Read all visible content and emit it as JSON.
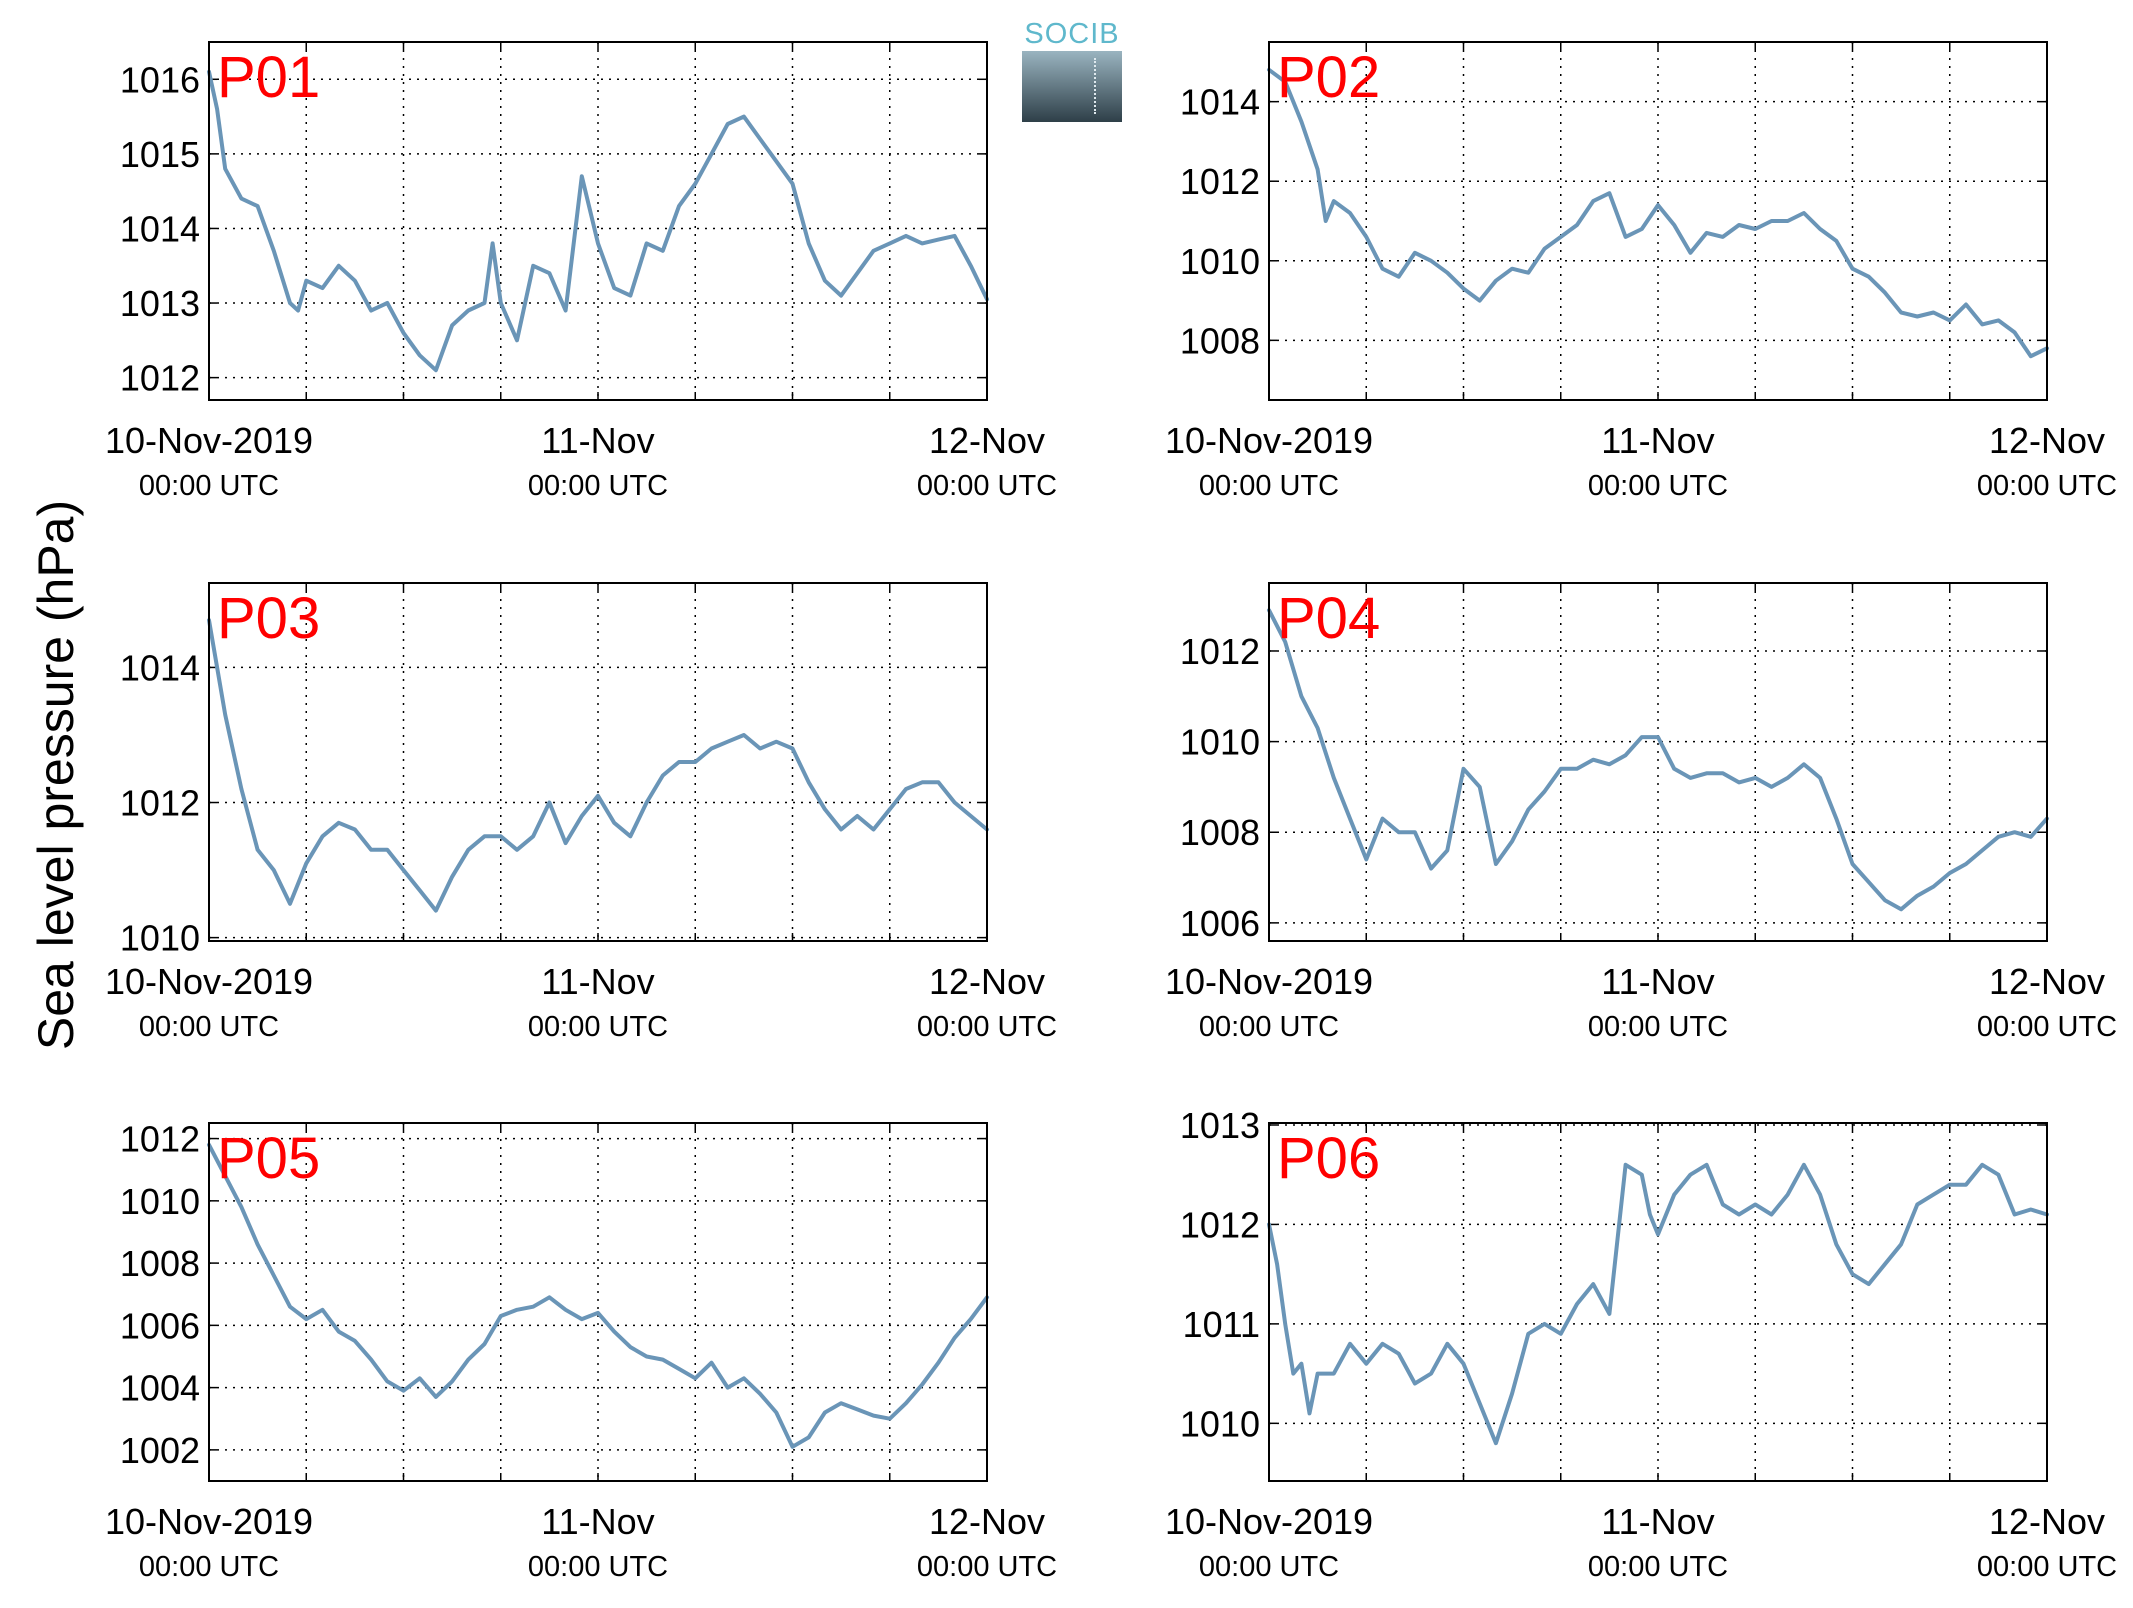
{
  "ylabel": "Sea level pressure (hPa)",
  "brand": {
    "logo_text": "SOCIB",
    "colors": {
      "text": "#5fb8cc",
      "top": "#9ab4c0",
      "bottom": "#2e3f48"
    }
  },
  "colors": {
    "line": "#6a95b7",
    "panel_label": "#ff0000",
    "axis": "#000000"
  },
  "x_tick_labels": [
    "10-Nov-2019",
    "11-Nov",
    "12-Nov"
  ],
  "x_tick_sublabels": [
    "00:00 UTC",
    "00:00 UTC",
    "00:00 UTC"
  ],
  "chart_data": [
    {
      "type": "line",
      "title": "P01",
      "xlabel": "",
      "ylabel": "Sea level pressure (hPa)",
      "x_unit": "hours since 10-Nov-2019 00:00 UTC",
      "xlim": [
        0,
        48
      ],
      "ylim": [
        1011.7,
        1016.5
      ],
      "yticks": [
        1012,
        1013,
        1014,
        1015,
        1016
      ],
      "grid": true,
      "x": [
        0,
        0.5,
        1,
        1.5,
        2,
        3,
        4,
        5,
        5.5,
        6,
        7,
        8,
        9,
        10,
        11,
        12,
        13,
        14,
        15,
        16,
        17,
        17.5,
        18,
        19,
        20,
        21,
        22,
        23,
        24,
        25,
        26,
        27,
        28,
        29,
        30,
        31,
        32,
        33,
        34,
        35,
        36,
        37,
        38,
        39,
        40,
        41,
        42,
        43,
        44,
        45,
        46,
        47,
        48
      ],
      "values": [
        1016.1,
        1015.6,
        1014.8,
        1014.6,
        1014.4,
        1014.3,
        1013.7,
        1013.0,
        1012.9,
        1013.3,
        1013.2,
        1013.5,
        1013.3,
        1012.9,
        1013.0,
        1012.6,
        1012.3,
        1012.1,
        1012.7,
        1012.9,
        1013.0,
        1013.8,
        1013.0,
        1012.5,
        1013.5,
        1013.4,
        1012.9,
        1014.7,
        1013.8,
        1013.2,
        1013.1,
        1013.8,
        1013.7,
        1014.3,
        1014.6,
        1015.0,
        1015.4,
        1015.5,
        1015.2,
        1014.9,
        1014.6,
        1013.8,
        1013.3,
        1013.1,
        1013.4,
        1013.7,
        1013.8,
        1013.9,
        1013.8,
        1013.85,
        1013.9,
        1013.5,
        1013.05
      ]
    },
    {
      "type": "line",
      "title": "P02",
      "xlabel": "",
      "ylabel": "Sea level pressure (hPa)",
      "x_unit": "hours since 10-Nov-2019 00:00 UTC",
      "xlim": [
        0,
        48
      ],
      "ylim": [
        1006.5,
        1015.5
      ],
      "yticks": [
        1008,
        1010,
        1012,
        1014
      ],
      "grid": true,
      "x": [
        0,
        1,
        2,
        3,
        3.5,
        4,
        5,
        6,
        7,
        8,
        9,
        10,
        11,
        12,
        13,
        14,
        15,
        16,
        17,
        18,
        19,
        20,
        21,
        22,
        23,
        24,
        25,
        26,
        27,
        28,
        29,
        30,
        31,
        32,
        33,
        34,
        35,
        36,
        37,
        38,
        39,
        40,
        41,
        42,
        43,
        44,
        45,
        46,
        47,
        48
      ],
      "values": [
        1014.8,
        1014.5,
        1013.5,
        1012.3,
        1011.0,
        1011.5,
        1011.2,
        1010.6,
        1009.8,
        1009.6,
        1010.2,
        1010.0,
        1009.7,
        1009.3,
        1009.0,
        1009.5,
        1009.8,
        1009.7,
        1010.3,
        1010.6,
        1010.9,
        1011.5,
        1011.7,
        1010.6,
        1010.8,
        1011.4,
        1010.9,
        1010.2,
        1010.7,
        1010.6,
        1010.9,
        1010.8,
        1011.0,
        1011.0,
        1011.2,
        1010.8,
        1010.5,
        1009.8,
        1009.6,
        1009.2,
        1008.7,
        1008.6,
        1008.7,
        1008.5,
        1008.9,
        1008.4,
        1008.5,
        1008.2,
        1007.6,
        1007.8
      ]
    },
    {
      "type": "line",
      "title": "P03",
      "xlabel": "",
      "ylabel": "Sea level pressure (hPa)",
      "x_unit": "hours since 10-Nov-2019 00:00 UTC",
      "xlim": [
        0,
        48
      ],
      "ylim": [
        1009.95,
        1015.25
      ],
      "yticks": [
        1010,
        1012,
        1014
      ],
      "grid": true,
      "x": [
        0,
        0.5,
        1,
        2,
        3,
        4,
        5,
        6,
        7,
        8,
        9,
        10,
        11,
        12,
        13,
        14,
        15,
        16,
        17,
        18,
        19,
        20,
        21,
        22,
        23,
        24,
        25,
        26,
        27,
        28,
        29,
        30,
        31,
        32,
        33,
        34,
        35,
        36,
        37,
        38,
        39,
        40,
        41,
        42,
        43,
        44,
        45,
        46,
        47,
        48
      ],
      "values": [
        1014.7,
        1014.0,
        1013.3,
        1012.2,
        1011.3,
        1011.0,
        1010.5,
        1011.1,
        1011.5,
        1011.7,
        1011.6,
        1011.3,
        1011.3,
        1011.0,
        1010.7,
        1010.4,
        1010.9,
        1011.3,
        1011.5,
        1011.5,
        1011.3,
        1011.5,
        1012.0,
        1011.4,
        1011.8,
        1012.1,
        1011.7,
        1011.5,
        1012.0,
        1012.4,
        1012.6,
        1012.6,
        1012.8,
        1012.9,
        1013.0,
        1012.8,
        1012.9,
        1012.8,
        1012.3,
        1011.9,
        1011.6,
        1011.8,
        1011.6,
        1011.9,
        1012.2,
        1012.3,
        1012.3,
        1012.0,
        1011.8,
        1011.6
      ]
    },
    {
      "type": "line",
      "title": "P04",
      "xlabel": "",
      "ylabel": "Sea level pressure (hPa)",
      "x_unit": "hours since 10-Nov-2019 00:00 UTC",
      "xlim": [
        0,
        48
      ],
      "ylim": [
        1005.6,
        1013.5
      ],
      "yticks": [
        1006,
        1008,
        1010,
        1012
      ],
      "grid": true,
      "x": [
        0,
        1,
        2,
        3,
        4,
        5,
        6,
        7,
        8,
        9,
        10,
        11,
        12,
        13,
        14,
        15,
        16,
        17,
        18,
        19,
        20,
        21,
        22,
        23,
        24,
        25,
        26,
        27,
        28,
        29,
        30,
        31,
        32,
        33,
        34,
        35,
        36,
        37,
        38,
        39,
        40,
        41,
        42,
        43,
        44,
        45,
        46,
        47,
        48
      ],
      "values": [
        1012.9,
        1012.2,
        1011.0,
        1010.3,
        1009.2,
        1008.3,
        1007.4,
        1008.3,
        1008.0,
        1008.0,
        1007.2,
        1007.6,
        1009.4,
        1009.0,
        1007.3,
        1007.8,
        1008.5,
        1008.9,
        1009.4,
        1009.4,
        1009.6,
        1009.5,
        1009.7,
        1010.1,
        1010.1,
        1009.4,
        1009.2,
        1009.3,
        1009.3,
        1009.1,
        1009.2,
        1009.0,
        1009.2,
        1009.5,
        1009.2,
        1008.3,
        1007.3,
        1006.9,
        1006.5,
        1006.3,
        1006.6,
        1006.8,
        1007.1,
        1007.3,
        1007.6,
        1007.9,
        1008.0,
        1007.9,
        1008.3
      ]
    },
    {
      "type": "line",
      "title": "P05",
      "xlabel": "",
      "ylabel": "Sea level pressure (hPa)",
      "x_unit": "hours since 10-Nov-2019 00:00 UTC",
      "xlim": [
        0,
        48
      ],
      "ylim": [
        1001.0,
        1012.5
      ],
      "yticks": [
        1002,
        1004,
        1006,
        1008,
        1010,
        1012
      ],
      "grid": true,
      "x": [
        0,
        1,
        2,
        3,
        4,
        5,
        6,
        7,
        8,
        9,
        10,
        11,
        12,
        13,
        14,
        15,
        16,
        17,
        18,
        19,
        20,
        21,
        22,
        23,
        24,
        25,
        26,
        27,
        28,
        29,
        30,
        31,
        32,
        33,
        34,
        35,
        36,
        37,
        38,
        39,
        40,
        41,
        42,
        43,
        44,
        45,
        46,
        47,
        48
      ],
      "values": [
        1011.8,
        1010.8,
        1009.8,
        1008.6,
        1007.6,
        1006.6,
        1006.2,
        1006.5,
        1005.8,
        1005.5,
        1004.9,
        1004.2,
        1003.9,
        1004.3,
        1003.7,
        1004.2,
        1004.9,
        1005.4,
        1006.3,
        1006.5,
        1006.6,
        1006.9,
        1006.5,
        1006.2,
        1006.4,
        1005.8,
        1005.3,
        1005.0,
        1004.9,
        1004.6,
        1004.3,
        1004.8,
        1004.0,
        1004.3,
        1003.8,
        1003.2,
        1002.1,
        1002.4,
        1003.2,
        1003.5,
        1003.3,
        1003.1,
        1003.0,
        1003.5,
        1004.1,
        1004.8,
        1005.6,
        1006.2,
        1006.9
      ]
    },
    {
      "type": "line",
      "title": "P06",
      "xlabel": "",
      "ylabel": "Sea level pressure (hPa)",
      "x_unit": "hours since 10-Nov-2019 00:00 UTC",
      "xlim": [
        0,
        48
      ],
      "ylim": [
        1009.42,
        1013.02
      ],
      "yticks": [
        1010,
        1011,
        1012,
        1013
      ],
      "grid": true,
      "x": [
        0,
        0.5,
        1,
        1.5,
        2,
        2.5,
        3,
        4,
        5,
        6,
        7,
        8,
        9,
        10,
        11,
        12,
        13,
        14,
        15,
        16,
        17,
        18,
        19,
        20,
        21,
        22,
        23,
        23.5,
        24,
        25,
        26,
        27,
        28,
        29,
        30,
        31,
        32,
        33,
        34,
        35,
        36,
        37,
        38,
        39,
        40,
        41,
        42,
        43,
        44,
        45,
        46,
        47,
        48
      ],
      "values": [
        1012.0,
        1011.6,
        1011.0,
        1010.5,
        1010.6,
        1010.1,
        1010.5,
        1010.5,
        1010.8,
        1010.6,
        1010.8,
        1010.7,
        1010.4,
        1010.5,
        1010.8,
        1010.6,
        1010.2,
        1009.8,
        1010.3,
        1010.9,
        1011.0,
        1010.9,
        1011.2,
        1011.4,
        1011.1,
        1012.6,
        1012.5,
        1012.1,
        1011.9,
        1012.3,
        1012.5,
        1012.6,
        1012.2,
        1012.1,
        1012.2,
        1012.1,
        1012.3,
        1012.6,
        1012.3,
        1011.8,
        1011.5,
        1011.4,
        1011.6,
        1011.8,
        1012.2,
        1012.3,
        1012.4,
        1012.4,
        1012.6,
        1012.5,
        1012.1,
        1012.15,
        1012.1
      ]
    }
  ]
}
